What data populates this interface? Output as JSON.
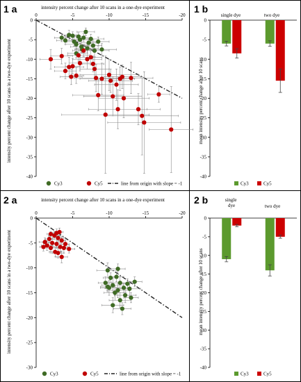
{
  "colors": {
    "cy3": "#3f6b25",
    "cy5": "#c00000",
    "cy3_bar": "#5c9a2e",
    "cy5_bar": "#cc0000",
    "err": "#888888"
  },
  "charts": [
    {
      "id": "1a",
      "panel_label": "1 a",
      "type": "scatter",
      "xlabel": "intensity percent change after 10 scans in a one-dye experiment",
      "ylabel": "intensity percent change after 10 scans in a two-dye experiment",
      "xlim": [
        0,
        -20
      ],
      "ylim": [
        -40,
        0
      ],
      "xticks": [
        "0",
        "-5",
        "-10",
        "-15",
        "-20"
      ],
      "yticks": [
        "0",
        "-5",
        "-10",
        "-15",
        "-20",
        "-25",
        "-30",
        "-35",
        "-40"
      ],
      "legend": [
        "Cy3",
        "Cy5",
        "line from origin with slope = -1"
      ],
      "series": [
        {
          "name": "Cy3",
          "points": [
            [
              -3.5,
              -4.5,
              1.0,
              1.0
            ],
            [
              -4.0,
              -5.2,
              1.2,
              1.0
            ],
            [
              -4.5,
              -3.8,
              1.0,
              1.2
            ],
            [
              -5.0,
              -4.0,
              0.8,
              1.0
            ],
            [
              -5.2,
              -5.5,
              1.0,
              1.2
            ],
            [
              -5.5,
              -6.2,
              1.5,
              1.2
            ],
            [
              -6.0,
              -5.0,
              1.2,
              1.0
            ],
            [
              -6.2,
              -6.8,
              1.5,
              1.5
            ],
            [
              -6.5,
              -4.5,
              1.0,
              1.0
            ],
            [
              -6.8,
              -3.0,
              1.2,
              1.0
            ],
            [
              -7.0,
              -7.2,
              1.5,
              1.2
            ],
            [
              -7.2,
              -5.8,
              1.0,
              1.0
            ],
            [
              -7.5,
              -4.8,
              1.8,
              1.2
            ],
            [
              -7.8,
              -6.5,
              1.2,
              1.5
            ],
            [
              -8.0,
              -7.8,
              2.0,
              1.5
            ],
            [
              -8.5,
              -5.5,
              1.5,
              1.2
            ],
            [
              -9.0,
              -7.5,
              2.0,
              1.5
            ],
            [
              -5.8,
              -4.2,
              0.8,
              1.0
            ],
            [
              -6.3,
              -7.5,
              1.0,
              1.0
            ],
            [
              -5.5,
              -8.5,
              1.2,
              1.2
            ]
          ]
        },
        {
          "name": "Cy5",
          "points": [
            [
              -2.0,
              -10.0,
              1.5,
              2.5
            ],
            [
              -3.5,
              -9.2,
              1.5,
              2.0
            ],
            [
              -4.0,
              -13.0,
              1.5,
              2.0
            ],
            [
              -4.5,
              -12.0,
              2.0,
              2.5
            ],
            [
              -4.8,
              -14.5,
              1.5,
              2.0
            ],
            [
              -5.0,
              -11.8,
              1.0,
              2.0
            ],
            [
              -5.5,
              -14.2,
              1.0,
              2.0
            ],
            [
              -5.8,
              -9.0,
              1.5,
              1.5
            ],
            [
              -6.0,
              -11.0,
              1.5,
              2.0
            ],
            [
              -6.5,
              -7.8,
              1.5,
              1.5
            ],
            [
              -7.0,
              -10.0,
              2.0,
              2.5
            ],
            [
              -7.5,
              -9.5,
              1.5,
              2.0
            ],
            [
              -7.8,
              -11.2,
              1.5,
              2.0
            ],
            [
              -8.0,
              -12.5,
              2.0,
              3.0
            ],
            [
              -8.2,
              -14.8,
              3.0,
              3.5
            ],
            [
              -8.5,
              -19.2,
              3.5,
              4.0
            ],
            [
              -9.0,
              -15.0,
              3.0,
              4.0
            ],
            [
              -9.5,
              -24.2,
              6.0,
              15.0
            ],
            [
              -10.0,
              -14.0,
              4.0,
              4.0
            ],
            [
              -10.2,
              -15.5,
              3.0,
              3.0
            ],
            [
              -10.5,
              -19.5,
              4.0,
              5.0
            ],
            [
              -11.0,
              -16.5,
              3.0,
              4.0
            ],
            [
              -11.2,
              -22.8,
              4.0,
              5.0
            ],
            [
              -11.5,
              -15.0,
              2.0,
              3.0
            ],
            [
              -11.8,
              -14.5,
              2.5,
              3.0
            ],
            [
              -12.0,
              -20.0,
              3.5,
              5.0
            ],
            [
              -13.0,
              -14.8,
              3.0,
              4.0
            ],
            [
              -14.0,
              -22.8,
              3.0,
              4.0
            ],
            [
              -14.5,
              -24.5,
              5.0,
              10.0
            ],
            [
              -14.8,
              -26.2,
              5.0,
              13.0
            ],
            [
              -16.8,
              -19.0,
              1.5,
              2.0
            ],
            [
              -18.5,
              -28.0,
              3.0,
              11.0
            ]
          ]
        }
      ]
    },
    {
      "id": "1b",
      "panel_label": "1 b",
      "type": "bar",
      "ylabel": "mean intensity percent change after 10 scans",
      "ylim": [
        -40,
        0
      ],
      "yticks": [
        "0",
        "-5",
        "-10",
        "-15",
        "-20",
        "-25",
        "-30",
        "-35",
        "-40"
      ],
      "categories": [
        "single dye",
        "two dye"
      ],
      "legend": [
        "Cy3",
        "Cy5"
      ],
      "series": [
        {
          "name": "Cy3",
          "values": [
            -6.0,
            -6.0
          ],
          "errors": [
            0.6,
            0.7
          ]
        },
        {
          "name": "Cy5",
          "values": [
            -8.5,
            -15.5
          ],
          "errors": [
            1.2,
            3.0
          ]
        }
      ]
    },
    {
      "id": "2a",
      "panel_label": "2 a",
      "type": "scatter",
      "xlabel": "intensity percent change after 10 scans in a one-dye experiment",
      "ylabel": "intensity percent change after 10 scans in a two-dye experiment",
      "xlim": [
        0,
        -20
      ],
      "ylim": [
        -30,
        0
      ],
      "xticks": [
        "0",
        "-5",
        "-10",
        "-15",
        "-20"
      ],
      "yticks": [
        "0",
        "-5",
        "-10",
        "-15",
        "-20",
        "-25",
        "-30"
      ],
      "legend": [
        "Cy3",
        "Cy5",
        "line from origin with slope = -1"
      ],
      "series": [
        {
          "name": "Cy3",
          "points": [
            [
              -9.5,
              -13.0,
              1.0,
              1.2
            ],
            [
              -9.8,
              -10.5,
              1.5,
              1.5
            ],
            [
              -10.0,
              -14.0,
              1.2,
              1.5
            ],
            [
              -10.2,
              -12.0,
              1.0,
              1.0
            ],
            [
              -10.5,
              -13.5,
              1.5,
              1.5
            ],
            [
              -10.8,
              -15.0,
              1.5,
              1.5
            ],
            [
              -11.0,
              -11.8,
              1.0,
              1.0
            ],
            [
              -11.2,
              -14.5,
              1.5,
              1.5
            ],
            [
              -11.5,
              -13.0,
              1.2,
              1.2
            ],
            [
              -11.5,
              -16.5,
              1.5,
              1.5
            ],
            [
              -11.8,
              -18.2,
              1.2,
              1.2
            ],
            [
              -12.0,
              -14.0,
              1.0,
              1.0
            ],
            [
              -12.2,
              -15.5,
              1.5,
              1.5
            ],
            [
              -12.5,
              -13.2,
              1.0,
              1.0
            ],
            [
              -12.8,
              -14.2,
              1.5,
              1.5
            ],
            [
              -13.0,
              -16.0,
              1.0,
              1.0
            ],
            [
              -13.5,
              -12.8,
              1.0,
              1.0
            ],
            [
              -10.5,
              -17.5,
              1.5,
              1.5
            ],
            [
              -9.8,
              -13.8,
              1.0,
              1.0
            ],
            [
              -11.2,
              -10.2,
              1.0,
              1.0
            ]
          ]
        },
        {
          "name": "Cy5",
          "points": [
            [
              -1.2,
              -4.8,
              0.8,
              0.8
            ],
            [
              -1.5,
              -5.5,
              0.8,
              1.0
            ],
            [
              -1.8,
              -4.2,
              0.5,
              0.8
            ],
            [
              -2.0,
              -6.0,
              0.8,
              1.0
            ],
            [
              -2.2,
              -5.0,
              0.5,
              0.8
            ],
            [
              -2.5,
              -3.5,
              0.8,
              0.8
            ],
            [
              -2.6,
              -6.8,
              0.8,
              1.0
            ],
            [
              -2.8,
              -5.2,
              0.5,
              0.8
            ],
            [
              -3.0,
              -4.0,
              0.8,
              0.8
            ],
            [
              -3.0,
              -7.0,
              0.8,
              1.0
            ],
            [
              -3.2,
              -2.8,
              0.5,
              0.8
            ],
            [
              -3.3,
              -5.8,
              1.0,
              1.0
            ],
            [
              -3.5,
              -4.5,
              0.5,
              0.8
            ],
            [
              -3.5,
              -7.8,
              0.8,
              1.2
            ],
            [
              -3.8,
              -6.0,
              0.8,
              1.0
            ],
            [
              -4.0,
              -5.2,
              0.5,
              0.8
            ],
            [
              -2.0,
              -3.2,
              0.5,
              0.5
            ],
            [
              -4.5,
              -6.2,
              0.8,
              0.8
            ],
            [
              -1.0,
              -5.8,
              0.5,
              0.8
            ],
            [
              -2.8,
              -3.0,
              0.5,
              0.8
            ]
          ]
        }
      ]
    },
    {
      "id": "2b",
      "panel_label": "2 b",
      "type": "bar",
      "ylabel": "mean intensity percent change after 10 scans",
      "ylim": [
        -40,
        0
      ],
      "yticks": [
        "0",
        "-5",
        "-10",
        "-15",
        "-20",
        "-25",
        "-30",
        "-35",
        "-40"
      ],
      "categories": [
        "single dye",
        "two dye"
      ],
      "legend": [
        "Cy3",
        "Cy5"
      ],
      "series": [
        {
          "name": "Cy3",
          "values": [
            -11.0,
            -14.0
          ],
          "errors": [
            0.7,
            1.5
          ]
        },
        {
          "name": "Cy5",
          "values": [
            -2.0,
            -5.0
          ],
          "errors": [
            0.3,
            0.4
          ]
        }
      ]
    }
  ]
}
